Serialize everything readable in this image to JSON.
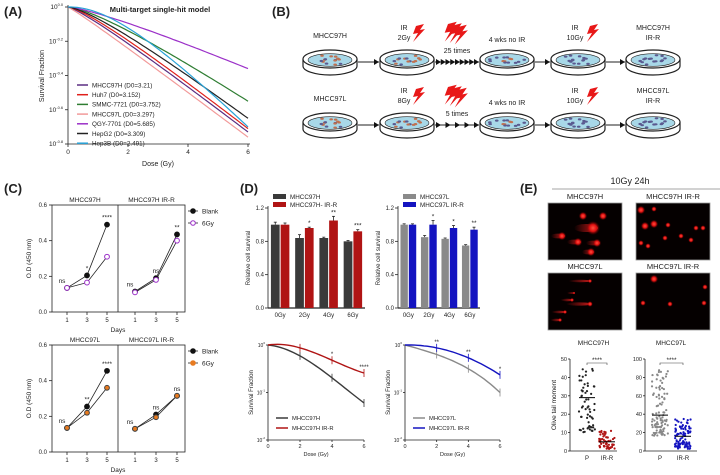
{
  "panels": {
    "A": "(A)",
    "B": "(B)",
    "C": "(C)",
    "D": "(D)",
    "E": "(E)"
  },
  "chart_data": [
    {
      "id": "A",
      "type": "line",
      "title": "Multi-target single-hit model",
      "xlabel": "Dose (Gy)",
      "ylabel": "Survival Fraction",
      "xlim": [
        0,
        6
      ],
      "xticks": [
        "0",
        "2",
        "4",
        "6"
      ],
      "yscale": "log10",
      "ylim_log10": [
        -0.8,
        0
      ],
      "yticks": [
        "10^0.0",
        "10^-0.2",
        "10^-0.4",
        "10^-0.6",
        "10^-0.8"
      ],
      "legend_position": "bottom-left",
      "series": [
        {
          "name": "MHCC97H (D0=3.21)",
          "d0": 3.21,
          "log10_sf_at_6gy": -0.73,
          "color": "#5a2d82"
        },
        {
          "name": "Huh7 (D0=3.152)",
          "d0": 3.152,
          "log10_sf_at_6gy": -0.71,
          "color": "#e0201b"
        },
        {
          "name": "SMMC-7721 (D0=3.752)",
          "d0": 3.752,
          "log10_sf_at_6gy": -0.55,
          "color": "#2e7d32"
        },
        {
          "name": "MHCC97L (D0=3.297)",
          "d0": 3.297,
          "log10_sf_at_6gy": -0.76,
          "color": "#f29a9a"
        },
        {
          "name": "QGY-7701 (D0=5.685)",
          "d0": 5.685,
          "log10_sf_at_6gy": -0.36,
          "color": "#9b30c8"
        },
        {
          "name": "HepG2 (D0=3.309)",
          "d0": 3.309,
          "log10_sf_at_6gy": -0.65,
          "color": "#222222"
        },
        {
          "name": "Hep3B (D0=2.491)",
          "d0": 2.491,
          "log10_sf_at_6gy": -0.7,
          "color": "#29a3d8"
        }
      ]
    },
    {
      "id": "C",
      "type": "line",
      "xlabel": "Days",
      "ylabel": "O.D (450 nm)",
      "ylim": [
        0,
        0.6
      ],
      "yticks": [
        "0.0",
        "0.2",
        "0.4",
        "0.6"
      ],
      "x": [
        "1",
        "3",
        "5"
      ],
      "rows": [
        {
          "legend": [
            "Blank",
            "6Gy"
          ],
          "treat_color": "#9b30c8",
          "panels": [
            {
              "title": "MHCC97H",
              "blank": [
                0.135,
                0.205,
                0.49
              ],
              "gy6": [
                0.135,
                0.165,
                0.31
              ],
              "sig": [
                "ns",
                "*",
                "****"
              ]
            },
            {
              "title": "MHCC97H IR-R",
              "blank": [
                0.115,
                0.19,
                0.435
              ],
              "gy6": [
                0.11,
                0.18,
                0.4
              ],
              "sig": [
                "ns",
                "ns",
                "**"
              ]
            }
          ]
        },
        {
          "legend": [
            "Blank",
            "6Gy"
          ],
          "treat_color": "#e87b20",
          "panels": [
            {
              "title": "MHCC97L",
              "blank": [
                0.135,
                0.255,
                0.455
              ],
              "gy6": [
                0.135,
                0.22,
                0.36
              ],
              "sig": [
                "ns",
                "**",
                "****"
              ]
            },
            {
              "title": "MHCC97L IR-R",
              "blank": [
                0.13,
                0.21,
                0.315
              ],
              "gy6": [
                0.13,
                0.195,
                0.315
              ],
              "sig": [
                "ns",
                "ns",
                "ns"
              ]
            }
          ]
        }
      ]
    },
    {
      "id": "D-bar",
      "type": "bar",
      "ylabel": "Relative cell survival",
      "ylim": [
        0,
        1.2
      ],
      "yticks": [
        "0.0",
        "0.4",
        "0.8",
        "1.2"
      ],
      "categories": [
        "0Gy",
        "2Gy",
        "4Gy",
        "6Gy"
      ],
      "charts": [
        {
          "series": [
            {
              "name": "MHCC97H",
              "values": [
                1.0,
                0.84,
                0.84,
                0.8
              ],
              "err": [
                0.03,
                0.04,
                0.01,
                0.01
              ],
              "color": "#3a3a3a"
            },
            {
              "name": "MHCC97H- IR-R",
              "values": [
                1.0,
                0.96,
                1.05,
                0.92
              ],
              "err": [
                0.02,
                0.01,
                0.05,
                0.02
              ],
              "color": "#b01414"
            }
          ],
          "sig": [
            "",
            "*",
            "**",
            "***"
          ]
        },
        {
          "series": [
            {
              "name": "MHCC97L",
              "values": [
                1.0,
                0.85,
                0.83,
                0.75
              ],
              "err": [
                0.01,
                0.02,
                0.01,
                0.01
              ],
              "color": "#8a8a8a"
            },
            {
              "name": "MHCC97L IR-R",
              "values": [
                1.0,
                1.0,
                0.96,
                0.94
              ],
              "err": [
                0.01,
                0.05,
                0.03,
                0.03
              ],
              "color": "#1414c0"
            }
          ],
          "sig": [
            "",
            "*",
            "*",
            "**"
          ]
        }
      ]
    },
    {
      "id": "D-survival",
      "type": "line",
      "xlabel": "Dose (Gy)",
      "ylabel": "Survival Fraction",
      "xticks": [
        "0",
        "2",
        "4",
        "6"
      ],
      "yscale": "log10",
      "ylim_log10": [
        -2,
        0
      ],
      "yticks": [
        "10^0",
        "10^-1",
        "10^-2"
      ],
      "charts": [
        {
          "series": [
            {
              "name": "MHCC97H",
              "log10_sf": [
                0,
                -0.23,
                -0.69,
                -1.22
              ],
              "color": "#3a3a3a"
            },
            {
              "name": "MHCC97H IR-R",
              "log10_sf": [
                0,
                -0.06,
                -0.32,
                -0.59
              ],
              "color": "#b01414"
            }
          ],
          "sig": [
            "",
            "",
            "*",
            "****"
          ]
        },
        {
          "series": [
            {
              "name": "MHCC97L",
              "log10_sf": [
                0,
                -0.2,
                -0.5,
                -1.0
              ],
              "color": "#8a8a8a"
            },
            {
              "name": "MHCC97L IR-R",
              "log10_sf": [
                0,
                -0.06,
                -0.27,
                -0.63
              ],
              "color": "#1414c0"
            }
          ],
          "sig": [
            "",
            "**",
            "**",
            "*"
          ]
        }
      ]
    },
    {
      "id": "E-scatter",
      "type": "scatter",
      "ylabel": "Olive tail moment",
      "categories": [
        "P",
        "IR-R"
      ],
      "charts": [
        {
          "title": "MHCC97H",
          "ylim": [
            0,
            50
          ],
          "yticks": [
            "0",
            "10",
            "20",
            "30",
            "40",
            "50"
          ],
          "groups": [
            {
              "mean": 29,
              "min": 10,
              "max": 45,
              "n": 60,
              "color": "#222222"
            },
            {
              "mean": 5,
              "min": 1,
              "max": 11,
              "n": 60,
              "color": "#b01414"
            }
          ],
          "sig": "****"
        },
        {
          "title": "MHCC97L",
          "ylim": [
            0,
            100
          ],
          "yticks": [
            "0",
            "20",
            "40",
            "60",
            "80",
            "100"
          ],
          "groups": [
            {
              "mean": 39,
              "min": 14,
              "max": 88,
              "n": 100,
              "color": "#888888"
            },
            {
              "mean": 16,
              "min": 1,
              "max": 35,
              "n": 100,
              "color": "#1414c0"
            }
          ],
          "sig": "****"
        }
      ]
    }
  ],
  "diagram_B": {
    "rows": [
      {
        "start": "MHCC97H",
        "ir1": [
          "IR",
          "2Gy"
        ],
        "repeat": "25 times",
        "rest": "4 wks no IR",
        "ir2": [
          "IR",
          "10Gy"
        ],
        "end": [
          "MHCC97H",
          "IR-R"
        ],
        "arrowheads": 9
      },
      {
        "start": "MHCC97L",
        "ir1": [
          "IR",
          "8Gy"
        ],
        "repeat": "5 times",
        "rest": "4 wks no IR",
        "ir2": [
          "IR",
          "10Gy"
        ],
        "end": [
          "MHCC97L",
          "IR-R"
        ],
        "arrowheads": 5
      }
    ]
  },
  "comet_E": {
    "header": "10Gy 24h",
    "images": [
      "MHCC97H",
      "MHCC97H IR-R",
      "MHCC97L",
      "MHCC97L IR-R"
    ]
  },
  "colors": {
    "bolt": "#e81818",
    "dish_medium": "#a8d8e8",
    "cell_parental": "#c07050",
    "cell_resistant": "#5a5a90"
  }
}
